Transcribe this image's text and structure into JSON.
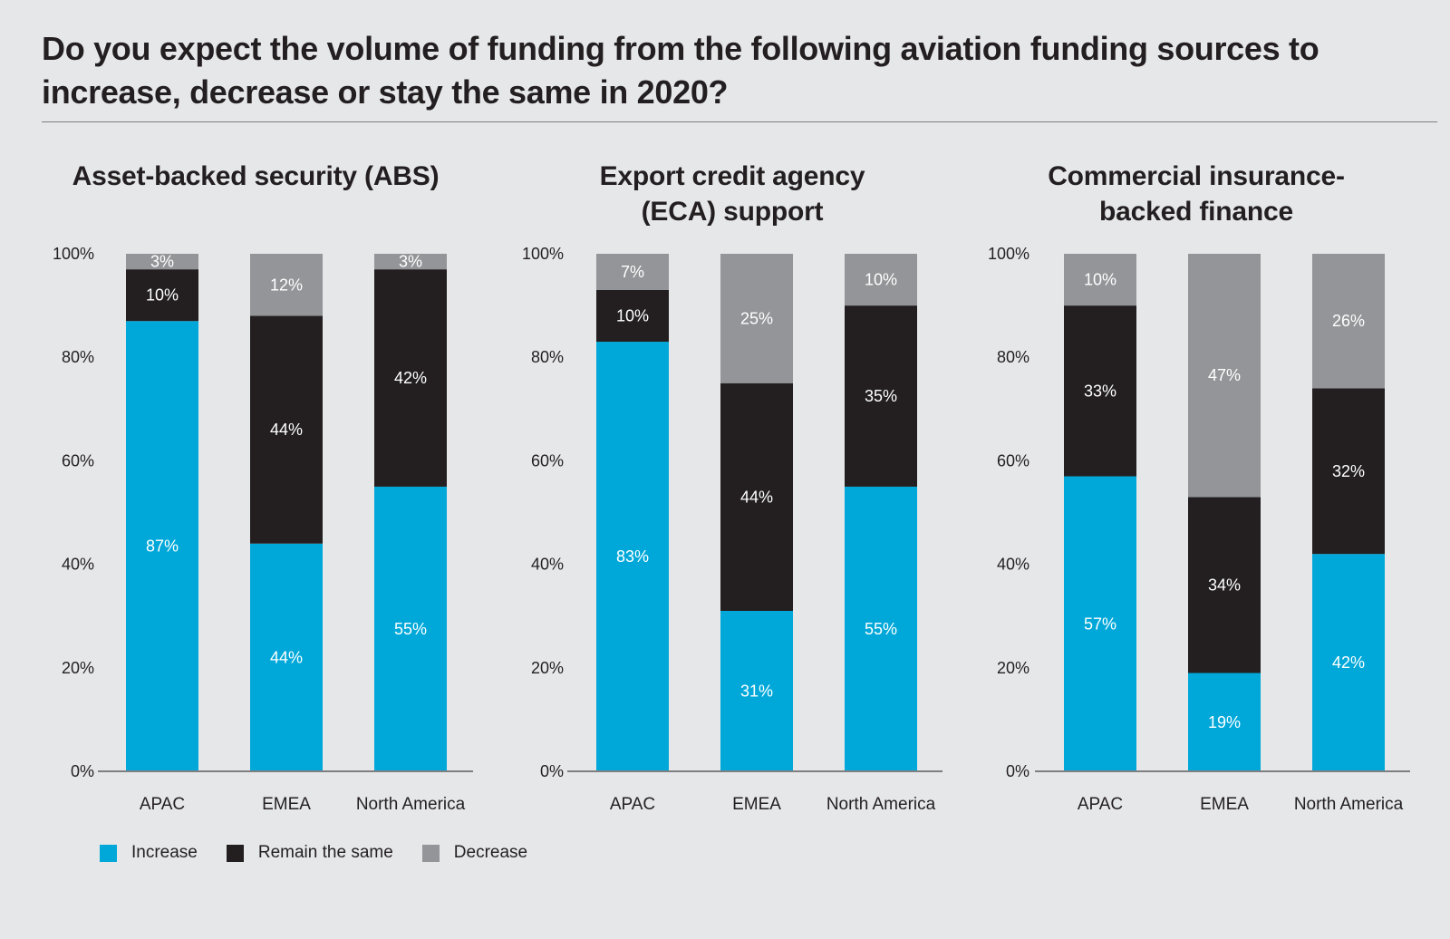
{
  "title": "Do you expect the volume of funding from the following aviation funding sources to increase, decrease or stay the same in 2020?",
  "colors": {
    "increase": "#00a8d9",
    "remain": "#231f20",
    "decrease": "#939598",
    "axis": "#7f7f82",
    "text": "#231f20",
    "label_on_bar": "#ffffff"
  },
  "legend": [
    {
      "key": "increase",
      "label": "Increase"
    },
    {
      "key": "remain",
      "label": "Remain the same"
    },
    {
      "key": "decrease",
      "label": "Decrease"
    }
  ],
  "chart_data": [
    {
      "type": "bar",
      "stacked": true,
      "title": "Asset-backed security (ABS)",
      "categories": [
        "APAC",
        "EMEA",
        "North America"
      ],
      "series": [
        {
          "name": "Increase",
          "values": [
            87,
            44,
            55
          ]
        },
        {
          "name": "Remain the same",
          "values": [
            10,
            44,
            42
          ]
        },
        {
          "name": "Decrease",
          "values": [
            3,
            12,
            3
          ]
        }
      ],
      "yticks": [
        "0%",
        "20%",
        "40%",
        "60%",
        "80%",
        "100%"
      ],
      "ylim": [
        0,
        100
      ],
      "xlabel": "",
      "ylabel": "",
      "grid": false
    },
    {
      "type": "bar",
      "stacked": true,
      "title": "Export credit agency (ECA) support",
      "title_lines": [
        "Export credit agency",
        "(ECA) support"
      ],
      "categories": [
        "APAC",
        "EMEA",
        "North America"
      ],
      "series": [
        {
          "name": "Increase",
          "values": [
            83,
            31,
            55
          ]
        },
        {
          "name": "Remain the same",
          "values": [
            10,
            44,
            35
          ]
        },
        {
          "name": "Decrease",
          "values": [
            7,
            25,
            10
          ]
        }
      ],
      "yticks": [
        "0%",
        "20%",
        "40%",
        "60%",
        "80%",
        "100%"
      ],
      "ylim": [
        0,
        100
      ],
      "xlabel": "",
      "ylabel": "",
      "grid": false
    },
    {
      "type": "bar",
      "stacked": true,
      "title": "Commercial insurance-backed finance",
      "title_lines": [
        "Commercial insurance-",
        "backed finance"
      ],
      "categories": [
        "APAC",
        "EMEA",
        "North America"
      ],
      "series": [
        {
          "name": "Increase",
          "values": [
            57,
            19,
            42
          ]
        },
        {
          "name": "Remain the same",
          "values": [
            33,
            34,
            32
          ]
        },
        {
          "name": "Decrease",
          "values": [
            10,
            47,
            26
          ]
        }
      ],
      "yticks": [
        "0%",
        "20%",
        "40%",
        "60%",
        "80%",
        "100%"
      ],
      "ylim": [
        0,
        100
      ],
      "xlabel": "",
      "ylabel": "",
      "grid": false
    }
  ],
  "legend_placement": "bottom-left"
}
